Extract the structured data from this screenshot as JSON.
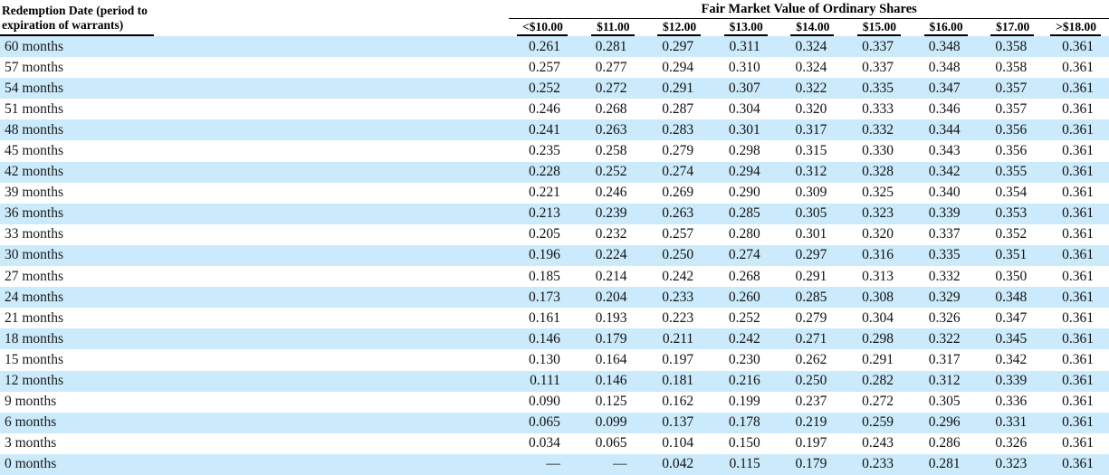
{
  "table": {
    "row_header_title": "Redemption Date (period to expiration of warrants)",
    "group_header": "Fair Market Value of Ordinary Shares",
    "columns": [
      "<$10.00",
      "$11.00",
      "$12.00",
      "$13.00",
      "$14.00",
      "$15.00",
      "$16.00",
      "$17.00",
      ">$18.00"
    ],
    "rows": [
      {
        "label": "60 months",
        "values": [
          "0.261",
          "0.281",
          "0.297",
          "0.311",
          "0.324",
          "0.337",
          "0.348",
          "0.358",
          "0.361"
        ]
      },
      {
        "label": "57 months",
        "values": [
          "0.257",
          "0.277",
          "0.294",
          "0.310",
          "0.324",
          "0.337",
          "0.348",
          "0.358",
          "0.361"
        ]
      },
      {
        "label": "54 months",
        "values": [
          "0.252",
          "0.272",
          "0.291",
          "0.307",
          "0.322",
          "0.335",
          "0.347",
          "0.357",
          "0.361"
        ]
      },
      {
        "label": "51 months",
        "values": [
          "0.246",
          "0.268",
          "0.287",
          "0.304",
          "0.320",
          "0.333",
          "0.346",
          "0.357",
          "0.361"
        ]
      },
      {
        "label": "48 months",
        "values": [
          "0.241",
          "0.263",
          "0.283",
          "0.301",
          "0.317",
          "0.332",
          "0.344",
          "0.356",
          "0.361"
        ]
      },
      {
        "label": "45 months",
        "values": [
          "0.235",
          "0.258",
          "0.279",
          "0.298",
          "0.315",
          "0.330",
          "0.343",
          "0.356",
          "0.361"
        ]
      },
      {
        "label": "42 months",
        "values": [
          "0.228",
          "0.252",
          "0.274",
          "0.294",
          "0.312",
          "0.328",
          "0.342",
          "0.355",
          "0.361"
        ]
      },
      {
        "label": "39 months",
        "values": [
          "0.221",
          "0.246",
          "0.269",
          "0.290",
          "0.309",
          "0.325",
          "0.340",
          "0.354",
          "0.361"
        ]
      },
      {
        "label": "36 months",
        "values": [
          "0.213",
          "0.239",
          "0.263",
          "0.285",
          "0.305",
          "0.323",
          "0.339",
          "0.353",
          "0.361"
        ]
      },
      {
        "label": "33 months",
        "values": [
          "0.205",
          "0.232",
          "0.257",
          "0.280",
          "0.301",
          "0.320",
          "0.337",
          "0.352",
          "0.361"
        ]
      },
      {
        "label": "30 months",
        "values": [
          "0.196",
          "0.224",
          "0.250",
          "0.274",
          "0.297",
          "0.316",
          "0.335",
          "0.351",
          "0.361"
        ]
      },
      {
        "label": "27 months",
        "values": [
          "0.185",
          "0.214",
          "0.242",
          "0.268",
          "0.291",
          "0.313",
          "0.332",
          "0.350",
          "0.361"
        ]
      },
      {
        "label": "24 months",
        "values": [
          "0.173",
          "0.204",
          "0.233",
          "0.260",
          "0.285",
          "0.308",
          "0.329",
          "0.348",
          "0.361"
        ]
      },
      {
        "label": "21 months",
        "values": [
          "0.161",
          "0.193",
          "0.223",
          "0.252",
          "0.279",
          "0.304",
          "0.326",
          "0.347",
          "0.361"
        ]
      },
      {
        "label": "18 months",
        "values": [
          "0.146",
          "0.179",
          "0.211",
          "0.242",
          "0.271",
          "0.298",
          "0.322",
          "0.345",
          "0.361"
        ]
      },
      {
        "label": "15 months",
        "values": [
          "0.130",
          "0.164",
          "0.197",
          "0.230",
          "0.262",
          "0.291",
          "0.317",
          "0.342",
          "0.361"
        ]
      },
      {
        "label": "12 months",
        "values": [
          "0.111",
          "0.146",
          "0.181",
          "0.216",
          "0.250",
          "0.282",
          "0.312",
          "0.339",
          "0.361"
        ]
      },
      {
        "label": "9 months",
        "values": [
          "0.090",
          "0.125",
          "0.162",
          "0.199",
          "0.237",
          "0.272",
          "0.305",
          "0.336",
          "0.361"
        ]
      },
      {
        "label": "6 months",
        "values": [
          "0.065",
          "0.099",
          "0.137",
          "0.178",
          "0.219",
          "0.259",
          "0.296",
          "0.331",
          "0.361"
        ]
      },
      {
        "label": "3 months",
        "values": [
          "0.034",
          "0.065",
          "0.104",
          "0.150",
          "0.197",
          "0.243",
          "0.286",
          "0.326",
          "0.361"
        ]
      },
      {
        "label": "0 months",
        "values": [
          "—",
          "—",
          "0.042",
          "0.115",
          "0.179",
          "0.233",
          "0.281",
          "0.323",
          "0.361"
        ]
      }
    ]
  },
  "colors": {
    "stripe": "#cbeafb",
    "rule": "#000000",
    "text": "#000000"
  }
}
